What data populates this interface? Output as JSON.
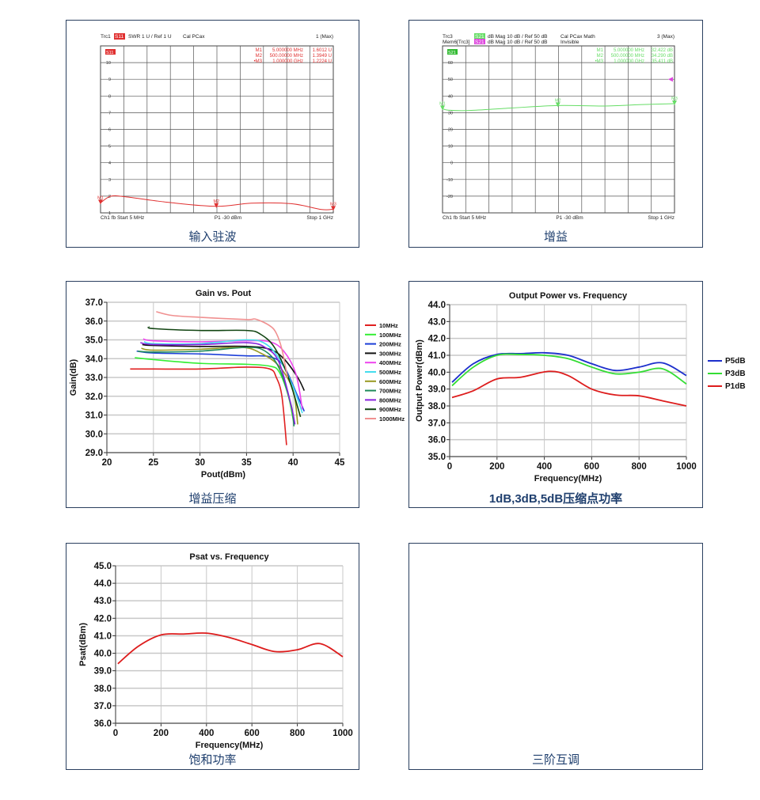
{
  "panels": {
    "vswr": {
      "caption": "输入驻波",
      "header": {
        "trc": "Trc1",
        "param": "S11",
        "format": "SWR  1 U /  Ref 1 U",
        "cal": "Cal PCax",
        "max": "1 (Max)"
      },
      "badge": "S11",
      "markers": [
        {
          "name": "M1",
          "freq": "5.000000 MHz",
          "val": "1.6012  U"
        },
        {
          "name": "M2",
          "freq": "500.00000 MHz",
          "val": "1.3949  U"
        },
        {
          "name": "•M3",
          "freq": "1.000000 GHz",
          "val": "1.2224  U"
        }
      ],
      "footer": {
        "left": "Ch1  fb  Start  5 MHz",
        "mid": "P1  -30 dBm",
        "right": "Stop  1 GHz"
      },
      "color": "#e03030"
    },
    "gain": {
      "caption": "增益",
      "header": {
        "trc": "Trc3",
        "mem": "Mem6[Trc3]",
        "param": "S21",
        "param2": "S21",
        "format": "dB Mag  10 dB /  Ref 50 dB",
        "format2": "dB Mag  10 dB /  Ref 50 dB",
        "cal": "Cal PCax Math",
        "cal2": "Invisible",
        "max": "3 (Max)"
      },
      "badge": "S21",
      "markers": [
        {
          "name": "M1",
          "freq": "5.000000 MHz",
          "val": "32.422 dB"
        },
        {
          "name": "M2",
          "freq": "500.00000 MHz",
          "val": "34.290 dB"
        },
        {
          "name": "•M3",
          "freq": "1.000000 GHz",
          "val": "35.411 dB"
        }
      ],
      "footer": {
        "left": "Ch1  fb  Start  5 MHz",
        "mid": "P1  -30 dBm",
        "right": "Stop  1 GHz"
      },
      "color": "#66dd66"
    },
    "compression": {
      "caption": "增益压缩"
    },
    "output_power": {
      "caption": "1dB,3dB,5dB压缩点功率"
    },
    "psat": {
      "caption": "饱和功率"
    },
    "imd": {
      "caption": "三阶互调"
    }
  },
  "chart_data": [
    {
      "id": "vswr",
      "type": "line",
      "title": "",
      "xlabel": "",
      "ylabel": "",
      "xlim": [
        5,
        1000
      ],
      "ylim": [
        1,
        11
      ],
      "yticks": [
        1,
        2,
        3,
        4,
        5,
        6,
        7,
        8,
        9,
        10
      ],
      "series": [
        {
          "name": "S11",
          "color": "#e03030",
          "points": [
            [
              5,
              1.6
            ],
            [
              50,
              2.0
            ],
            [
              120,
              1.95
            ],
            [
              300,
              1.62
            ],
            [
              500,
              1.39
            ],
            [
              650,
              1.58
            ],
            [
              820,
              1.55
            ],
            [
              950,
              1.2
            ],
            [
              1000,
              1.22
            ]
          ]
        }
      ],
      "marker_points": [
        {
          "label": "M1",
          "x": 5,
          "y": 1.6
        },
        {
          "label": "M2",
          "x": 500,
          "y": 1.39
        },
        {
          "label": "M3",
          "x": 1000,
          "y": 1.22
        }
      ]
    },
    {
      "id": "gain",
      "type": "line",
      "title": "",
      "xlabel": "",
      "ylabel": "",
      "xlim": [
        5,
        1000
      ],
      "ylim": [
        -30,
        70
      ],
      "yticks": [
        -20,
        -10,
        0,
        10,
        20,
        30,
        40,
        50,
        60
      ],
      "series": [
        {
          "name": "S21",
          "color": "#66dd66",
          "points": [
            [
              5,
              32.4
            ],
            [
              30,
              31.5
            ],
            [
              120,
              31.3
            ],
            [
              300,
              32.8
            ],
            [
              500,
              34.3
            ],
            [
              700,
              34.0
            ],
            [
              850,
              34.8
            ],
            [
              1000,
              35.4
            ]
          ]
        }
      ],
      "marker_points": [
        {
          "label": "M1",
          "x": 5,
          "y": 32.4
        },
        {
          "label": "M2",
          "x": 500,
          "y": 34.3
        },
        {
          "label": "M3",
          "x": 1000,
          "y": 35.4
        }
      ]
    },
    {
      "id": "compression",
      "type": "line",
      "title": "Gain vs. Pout",
      "xlabel": "Pout(dBm)",
      "ylabel": "Gain(dB)",
      "xlim": [
        20,
        45
      ],
      "ylim": [
        29,
        37
      ],
      "xticks": [
        20,
        25,
        30,
        35,
        40,
        45
      ],
      "yticks": [
        "29.0",
        "30.0",
        "31.0",
        "32.0",
        "33.0",
        "34.0",
        "35.0",
        "36.0",
        "37.0"
      ],
      "grid": true,
      "legend": "right",
      "series": [
        {
          "name": "10MHz",
          "color": "#e02020",
          "points": [
            [
              22.5,
              33.45
            ],
            [
              25,
              33.45
            ],
            [
              30,
              33.45
            ],
            [
              35,
              33.55
            ],
            [
              37.5,
              33.45
            ],
            [
              38.2,
              33
            ],
            [
              38.8,
              32
            ],
            [
              39.3,
              29.4
            ]
          ]
        },
        {
          "name": "100MHz",
          "color": "#33ee33",
          "points": [
            [
              23,
              34.05
            ],
            [
              25,
              33.95
            ],
            [
              30,
              33.75
            ],
            [
              35,
              33.7
            ],
            [
              37.5,
              33.6
            ],
            [
              38.5,
              33.3
            ],
            [
              39.5,
              32
            ],
            [
              40.1,
              30.5
            ]
          ]
        },
        {
          "name": "200MHz",
          "color": "#1c3fd8",
          "points": [
            [
              23.2,
              34.4
            ],
            [
              25,
              34.3
            ],
            [
              30,
              34.25
            ],
            [
              35,
              34.15
            ],
            [
              37.5,
              34.1
            ],
            [
              39,
              33.6
            ],
            [
              40.5,
              32
            ],
            [
              41.2,
              31.2
            ]
          ]
        },
        {
          "name": "300MHz",
          "color": "#111111",
          "points": [
            [
              23.8,
              34.75
            ],
            [
              25,
              34.7
            ],
            [
              30,
              34.65
            ],
            [
              35,
              34.65
            ],
            [
              37.5,
              34.5
            ],
            [
              39,
              34
            ],
            [
              40.5,
              33
            ],
            [
              41.2,
              32.3
            ]
          ]
        },
        {
          "name": "400MHz",
          "color": "#ee44ee",
          "points": [
            [
              23.9,
              35.05
            ],
            [
              25,
              34.95
            ],
            [
              30,
              34.9
            ],
            [
              35,
              34.95
            ],
            [
              37.5,
              34.9
            ],
            [
              39,
              34.4
            ],
            [
              40.3,
              33.2
            ],
            [
              41,
              31.3
            ]
          ]
        },
        {
          "name": "500MHz",
          "color": "#44ddee",
          "points": [
            [
              24,
              34.9
            ],
            [
              25,
              34.8
            ],
            [
              30,
              34.8
            ],
            [
              35,
              35
            ],
            [
              37,
              34.8
            ],
            [
              38.5,
              34
            ],
            [
              40,
              32.5
            ],
            [
              41,
              31.1
            ]
          ]
        },
        {
          "name": "600MHz",
          "color": "#999922",
          "points": [
            [
              23.7,
              34.55
            ],
            [
              25,
              34.45
            ],
            [
              30,
              34.5
            ],
            [
              34.5,
              34.6
            ],
            [
              36.5,
              34.3
            ],
            [
              38.5,
              33.6
            ],
            [
              40,
              32.3
            ],
            [
              40.5,
              30.5
            ]
          ]
        },
        {
          "name": "700MHz",
          "color": "#1e8a5a",
          "points": [
            [
              23.3,
              34.4
            ],
            [
              25,
              34.35
            ],
            [
              30,
              34.4
            ],
            [
              35,
              34.6
            ],
            [
              37,
              34.4
            ],
            [
              38.5,
              33.5
            ],
            [
              39.8,
              31.5
            ],
            [
              40.1,
              30.4
            ]
          ]
        },
        {
          "name": "800MHz",
          "color": "#8822dd",
          "points": [
            [
              23.6,
              34.85
            ],
            [
              25,
              34.75
            ],
            [
              30,
              34.75
            ],
            [
              35,
              34.85
            ],
            [
              37,
              34.6
            ],
            [
              38.5,
              33.8
            ],
            [
              39.8,
              31.5
            ],
            [
              40.2,
              30.5
            ]
          ]
        },
        {
          "name": "900MHz",
          "color": "#114411",
          "points": [
            [
              24.5,
              35.7
            ],
            [
              25,
              35.6
            ],
            [
              30,
              35.5
            ],
            [
              35,
              35.5
            ],
            [
              36.5,
              35.3
            ],
            [
              38,
              34.6
            ],
            [
              39.5,
              33
            ],
            [
              40.8,
              30.9
            ]
          ]
        },
        {
          "name": "1000MHz",
          "color": "#f09090",
          "points": [
            [
              25.3,
              36.5
            ],
            [
              27,
              36.3
            ],
            [
              30,
              36.2
            ],
            [
              35,
              36.08
            ],
            [
              36,
              36.1
            ],
            [
              37.5,
              35.75
            ],
            [
              38.2,
              35.35
            ],
            [
              38.8,
              34.5
            ],
            [
              39.4,
              33
            ]
          ]
        }
      ]
    },
    {
      "id": "output_power",
      "type": "line",
      "title": "Output Power vs. Frequency",
      "xlabel": "Frequency(MHz)",
      "ylabel": "Output Power(dBm)",
      "xlim": [
        0,
        1000
      ],
      "ylim": [
        35,
        44
      ],
      "xticks": [
        0,
        200,
        400,
        600,
        800,
        1000
      ],
      "yticks": [
        "35.0",
        "36.0",
        "37.0",
        "38.0",
        "39.0",
        "40.0",
        "41.0",
        "42.0",
        "43.0",
        "44.0"
      ],
      "grid": true,
      "legend": "right",
      "series": [
        {
          "name": "P5dB",
          "color": "#1c2fcc",
          "points": [
            [
              10,
              39.4
            ],
            [
              100,
              40.5
            ],
            [
              200,
              41.05
            ],
            [
              300,
              41.1
            ],
            [
              400,
              41.15
            ],
            [
              500,
              41.0
            ],
            [
              600,
              40.5
            ],
            [
              700,
              40.1
            ],
            [
              800,
              40.3
            ],
            [
              900,
              40.55
            ],
            [
              1000,
              39.8
            ]
          ]
        },
        {
          "name": "P3dB",
          "color": "#33dd33",
          "points": [
            [
              10,
              39.2
            ],
            [
              100,
              40.3
            ],
            [
              200,
              41.0
            ],
            [
              300,
              41.05
            ],
            [
              400,
              41.0
            ],
            [
              500,
              40.8
            ],
            [
              600,
              40.3
            ],
            [
              700,
              39.9
            ],
            [
              800,
              40.0
            ],
            [
              900,
              40.2
            ],
            [
              1000,
              39.3
            ]
          ]
        },
        {
          "name": "P1dB",
          "color": "#dd1c1c",
          "points": [
            [
              10,
              38.5
            ],
            [
              100,
              38.9
            ],
            [
              200,
              39.6
            ],
            [
              300,
              39.7
            ],
            [
              420,
              40.05
            ],
            [
              500,
              39.8
            ],
            [
              600,
              39.0
            ],
            [
              700,
              38.65
            ],
            [
              800,
              38.6
            ],
            [
              900,
              38.3
            ],
            [
              1000,
              38.0
            ]
          ]
        }
      ]
    },
    {
      "id": "psat",
      "type": "line",
      "title": "Psat vs. Frequency",
      "xlabel": "Frequency(MHz)",
      "ylabel": "Psat(dBm)",
      "xlim": [
        0,
        1000
      ],
      "ylim": [
        36,
        45
      ],
      "xticks": [
        0,
        200,
        400,
        600,
        800,
        1000
      ],
      "yticks": [
        "36.0",
        "37.0",
        "38.0",
        "39.0",
        "40.0",
        "41.0",
        "42.0",
        "43.0",
        "44.0",
        "45.0"
      ],
      "grid": true,
      "legend": "none",
      "series": [
        {
          "name": "Psat",
          "color": "#dd1c1c",
          "points": [
            [
              10,
              39.4
            ],
            [
              100,
              40.4
            ],
            [
              200,
              41.05
            ],
            [
              300,
              41.1
            ],
            [
              400,
              41.15
            ],
            [
              500,
              40.9
            ],
            [
              600,
              40.5
            ],
            [
              700,
              40.1
            ],
            [
              800,
              40.2
            ],
            [
              900,
              40.55
            ],
            [
              1000,
              39.8
            ]
          ]
        }
      ]
    }
  ]
}
